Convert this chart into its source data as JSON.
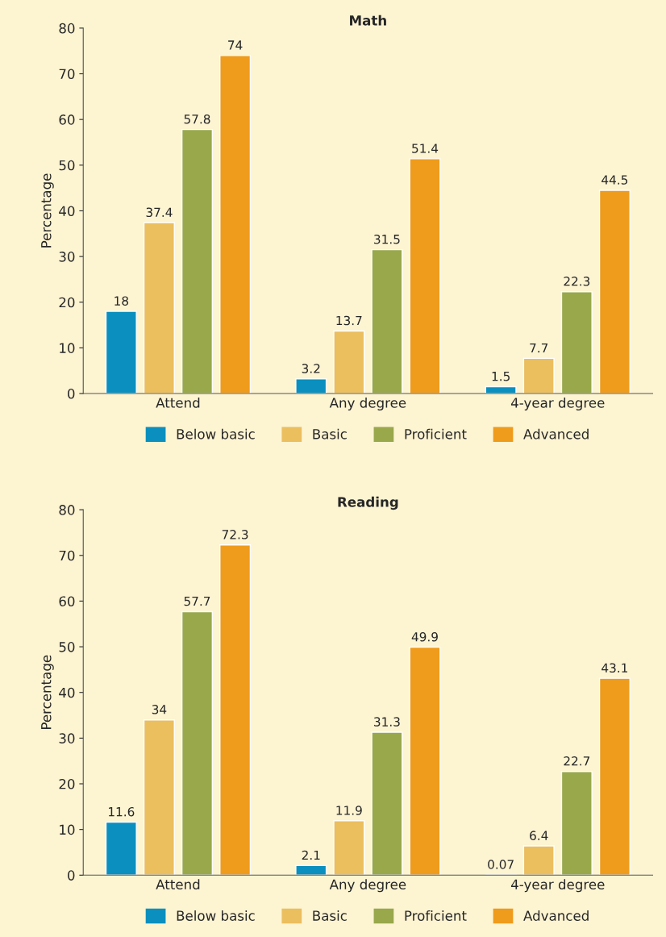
{
  "chart_data": [
    {
      "type": "bar",
      "title": "Math",
      "ylabel": "Percentage",
      "categories": [
        "Attend",
        "Any degree",
        "4-year degree"
      ],
      "series": [
        {
          "name": "Below basic",
          "color": "#0a8fbf",
          "values": [
            18,
            3.2,
            1.5
          ]
        },
        {
          "name": "Basic",
          "color": "#ebbe5e",
          "values": [
            37.4,
            13.7,
            7.7
          ]
        },
        {
          "name": "Proficient",
          "color": "#98a84b",
          "values": [
            57.8,
            31.5,
            22.3
          ]
        },
        {
          "name": "Advanced",
          "color": "#ef9b1b",
          "values": [
            74,
            51.4,
            44.5
          ]
        }
      ],
      "ylim": [
        0,
        80
      ],
      "yticks": [
        0,
        10,
        20,
        30,
        40,
        50,
        60,
        70,
        80
      ],
      "data_labels": true,
      "legend": "bottom",
      "grid": false
    },
    {
      "type": "bar",
      "title": "Reading",
      "ylabel": "Percentage",
      "categories": [
        "Attend",
        "Any degree",
        "4-year degree"
      ],
      "series": [
        {
          "name": "Below basic",
          "color": "#0a8fbf",
          "values": [
            11.6,
            2.1,
            0.07
          ]
        },
        {
          "name": "Basic",
          "color": "#ebbe5e",
          "values": [
            34,
            11.9,
            6.4
          ]
        },
        {
          "name": "Proficient",
          "color": "#98a84b",
          "values": [
            57.7,
            31.3,
            22.7
          ]
        },
        {
          "name": "Advanced",
          "color": "#ef9b1b",
          "values": [
            72.3,
            49.9,
            43.1
          ]
        }
      ],
      "ylim": [
        0,
        80
      ],
      "yticks": [
        0,
        10,
        20,
        30,
        40,
        50,
        60,
        70,
        80
      ],
      "data_labels": true,
      "legend": "bottom",
      "grid": false
    }
  ]
}
